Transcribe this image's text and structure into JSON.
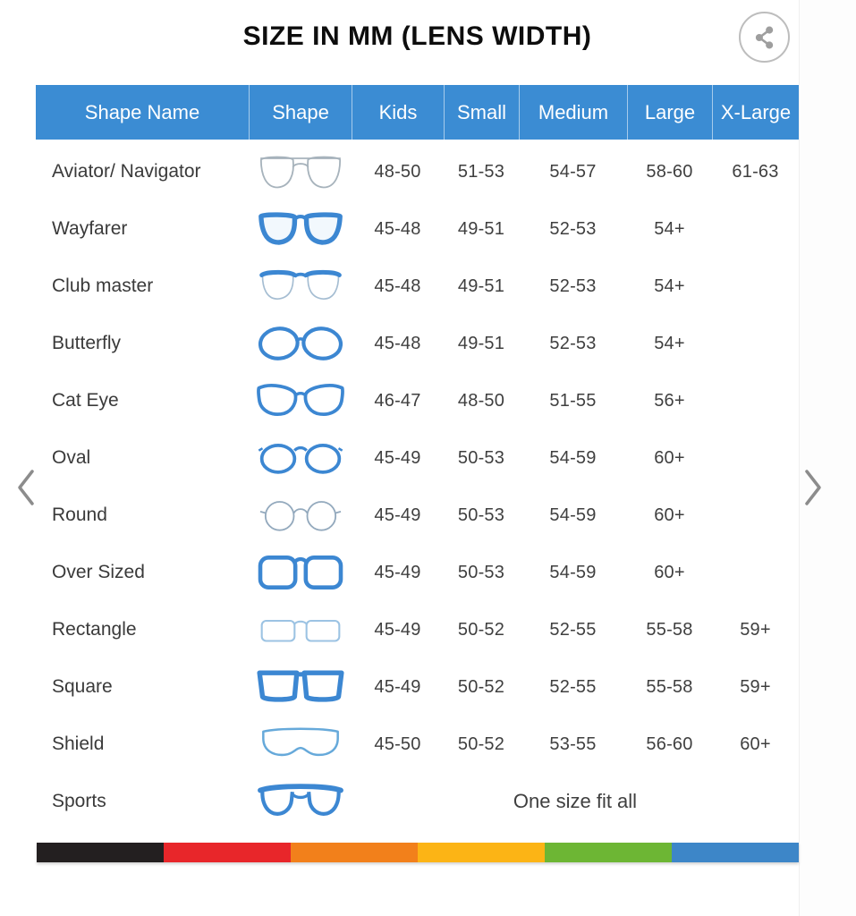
{
  "title": "SIZE IN MM (LENS WIDTH)",
  "header": [
    "Shape Name",
    "Shape",
    "Kids",
    "Small",
    "Medium",
    "Large",
    "X-Large"
  ],
  "rows": [
    {
      "name": "Aviator/ Navigator",
      "icon": "aviator",
      "sizes": [
        "48-50",
        "51-53",
        "54-57",
        "58-60",
        "61-63"
      ]
    },
    {
      "name": "Wayfarer",
      "icon": "wayfarer",
      "sizes": [
        "45-48",
        "49-51",
        "52-53",
        "54+",
        ""
      ]
    },
    {
      "name": "Club master",
      "icon": "clubmaster",
      "sizes": [
        "45-48",
        "49-51",
        "52-53",
        "54+",
        ""
      ]
    },
    {
      "name": "Butterfly",
      "icon": "butterfly",
      "sizes": [
        "45-48",
        "49-51",
        "52-53",
        "54+",
        ""
      ]
    },
    {
      "name": "Cat Eye",
      "icon": "cateye",
      "sizes": [
        "46-47",
        "48-50",
        "51-55",
        "56+",
        ""
      ]
    },
    {
      "name": "Oval",
      "icon": "oval",
      "sizes": [
        "45-49",
        "50-53",
        "54-59",
        "60+",
        ""
      ]
    },
    {
      "name": "Round",
      "icon": "round",
      "sizes": [
        "45-49",
        "50-53",
        "54-59",
        "60+",
        ""
      ]
    },
    {
      "name": "Over Sized",
      "icon": "oversized",
      "sizes": [
        "45-49",
        "50-53",
        "54-59",
        "60+",
        ""
      ]
    },
    {
      "name": "Rectangle",
      "icon": "rectangle",
      "sizes": [
        "45-49",
        "50-52",
        "52-55",
        "55-58",
        "59+"
      ]
    },
    {
      "name": "Square",
      "icon": "square",
      "sizes": [
        "45-49",
        "50-52",
        "52-55",
        "55-58",
        "59+"
      ]
    },
    {
      "name": "Shield",
      "icon": "shield",
      "sizes": [
        "45-50",
        "50-52",
        "53-55",
        "56-60",
        "60+"
      ]
    },
    {
      "name": "Sports",
      "icon": "sports",
      "one_size": "One size fit all"
    }
  ],
  "icons": {
    "share": "share-icon",
    "prev": "chevron-left-icon",
    "next": "chevron-right-icon"
  },
  "colors": {
    "header_bg": "#3b8cd3",
    "frame_blue": "#3c87d2",
    "text": "#3f3f3f",
    "title_text": "#0d0d0d",
    "chevron": "#8c8c8c",
    "share_icon": "#9e9e9e",
    "footer_segments": [
      "#231f20",
      "#e8262a",
      "#f2801b",
      "#fcb415",
      "#6db634",
      "#3d86c8"
    ]
  },
  "icon_colors": {
    "default": "#3c87d2",
    "aviator": "#a7b3bc",
    "round": "#93a9bd",
    "rectangle": "#9cc3e3",
    "shield": "#66a9da"
  }
}
